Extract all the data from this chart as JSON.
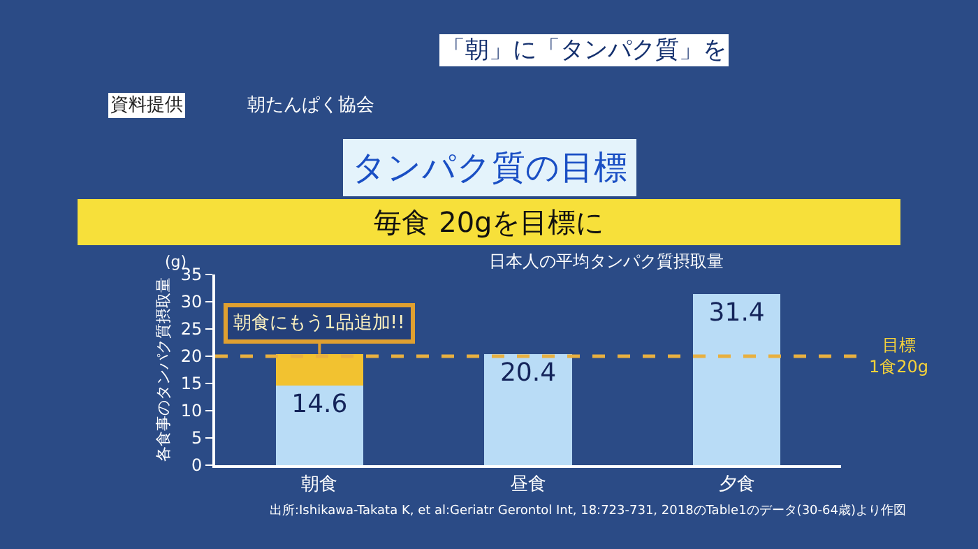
{
  "chart_data": {
    "type": "bar",
    "title": "タンパク質の目標",
    "subtitle": "毎食 20gを目標に",
    "ylabel": "各食事のタンパク質摂取量",
    "annotations": [
      "「朝」に「タンパク質」を",
      "資料提供",
      "朝たんぱく協会",
      "日本人の平均タンパク質摂取量",
      "(g)",
      {
        "text": "朝食にもう1品追加!!",
        "x": "朝食",
        "y": 20.4
      },
      "出所:Ishikawa-Takata K, et al:Geriatr Gerontol Int, 18:723-731, 2018のTable1のデータ(30-64歳)より作図"
    ],
    "categories": [
      "朝食",
      "昼食",
      "夕食"
    ],
    "stacked": true,
    "series": [
      {
        "color": "#b9dcf6",
        "values": [
          14.6,
          20.4,
          31.4
        ],
        "value_labels": [
          "14.6",
          "20.4",
          "31.4"
        ]
      },
      {
        "color": "#f2c230",
        "values": [
          5.8,
          null,
          null
        ]
      }
    ],
    "ylim": [
      0,
      35
    ],
    "yticks": [
      0,
      5,
      10,
      15,
      20,
      25,
      30,
      35
    ],
    "ref_lines": [
      {
        "axis": "y",
        "value": 20,
        "label": "目標 1食20g",
        "color": "#e8b040",
        "line_style": "dashed"
      }
    ],
    "grid": false,
    "legend": false
  }
}
